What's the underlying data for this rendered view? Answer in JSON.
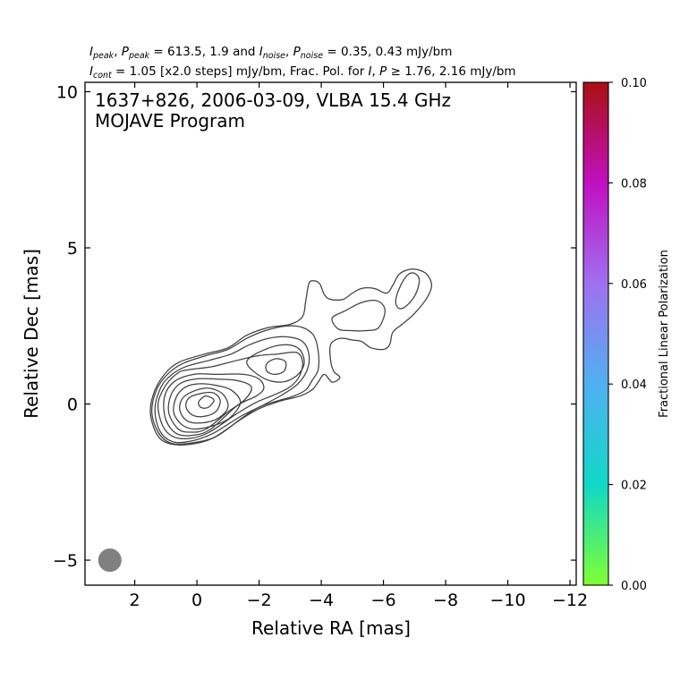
{
  "chart_data": {
    "type": "contour",
    "header_line1": "I_peak, P_peak = 613.5, 1.9 and I_noise, P_noise = 0.35, 0.43 mJy/bm",
    "header_line2": "I_cont = 1.05 [x2.0 steps] mJy/bm, Frac. Pol. for I, P ≥ 1.76, 2.16 mJy/bm",
    "header": {
      "i_peak": "613.5",
      "p_peak": "1.9",
      "i_noise": "0.35",
      "p_noise": "0.43",
      "i_cont": "1.05",
      "steps": "x2.0 steps",
      "i_thresh": "1.76",
      "p_thresh": "2.16"
    },
    "title_line1": "1637+826, 2006-03-09, VLBA 15.4 GHz",
    "title_line2": "MOJAVE Program",
    "xlabel": "Relative RA [mas]",
    "ylabel": "Relative Dec [mas]",
    "xlim": [
      3.6,
      -12.2
    ],
    "ylim": [
      -5.8,
      10.3
    ],
    "x_ticks": [
      2,
      0,
      -2,
      -4,
      -6,
      -8,
      -10,
      -12
    ],
    "x_tick_labels": [
      "2",
      "0",
      "−2",
      "−4",
      "−6",
      "−8",
      "−10",
      "−12"
    ],
    "y_ticks": [
      10,
      5,
      0,
      -5
    ],
    "y_tick_labels": [
      "10",
      "5",
      "0",
      "−5"
    ],
    "colorbar": {
      "label": "Fractional Linear Polarization",
      "min": 0.0,
      "max": 0.1,
      "ticks": [
        0.0,
        0.02,
        0.04,
        0.06,
        0.08,
        0.1
      ],
      "tick_labels": [
        "0.00",
        "0.02",
        "0.04",
        "0.06",
        "0.08",
        "0.10"
      ],
      "colors": [
        "#80ff30",
        "#10d8c8",
        "#50b0f0",
        "#a070f0",
        "#c010c0",
        "#aa1010"
      ]
    },
    "beam": {
      "x": 2.8,
      "y": -5.0,
      "major": 0.75,
      "minor": 0.75,
      "color": "#808080"
    },
    "contour_levels_mjy": [
      1.05,
      2.1,
      4.2,
      8.4,
      16.8,
      33.6,
      67.2,
      134.4,
      268.8,
      537.6
    ],
    "contour_color": "#404040",
    "contours": [
      [
        [
          -0.55,
          0.12
        ],
        [
          -0.42,
          0.22
        ],
        [
          -0.25,
          0.25
        ],
        [
          -0.05,
          0.05
        ],
        [
          -0.15,
          -0.12
        ],
        [
          -0.38,
          -0.1
        ]
      ],
      [
        [
          -0.2,
          0.35
        ],
        [
          -0.55,
          0.35
        ],
        [
          -0.75,
          0.1
        ],
        [
          -0.6,
          -0.25
        ],
        [
          -0.2,
          -0.4
        ],
        [
          0.15,
          -0.35
        ],
        [
          0.35,
          -0.1
        ],
        [
          0.25,
          0.2
        ]
      ],
      [
        [
          0.0,
          0.45
        ],
        [
          -0.45,
          0.5
        ],
        [
          -0.85,
          0.3
        ],
        [
          -1.0,
          -0.1
        ],
        [
          -0.7,
          -0.45
        ],
        [
          -0.2,
          -0.6
        ],
        [
          0.3,
          -0.55
        ],
        [
          0.55,
          -0.2
        ],
        [
          0.45,
          0.2
        ]
      ],
      [
        [
          -0.1,
          0.65
        ],
        [
          -0.6,
          0.6
        ],
        [
          -1.1,
          0.45
        ],
        [
          -1.4,
          0.05
        ],
        [
          -1.05,
          -0.45
        ],
        [
          -0.5,
          -0.7
        ],
        [
          0.1,
          -0.8
        ],
        [
          0.5,
          -0.65
        ],
        [
          0.75,
          -0.25
        ],
        [
          0.65,
          0.25
        ],
        [
          0.35,
          0.55
        ]
      ],
      [
        [
          0.05,
          0.8
        ],
        [
          -0.6,
          0.8
        ],
        [
          -1.3,
          0.75
        ],
        [
          -1.75,
          0.55
        ],
        [
          -1.55,
          0.15
        ],
        [
          -1.0,
          -0.25
        ],
        [
          -0.3,
          -0.8
        ],
        [
          0.2,
          -0.9
        ],
        [
          0.6,
          -0.8
        ],
        [
          0.9,
          -0.3
        ],
        [
          0.85,
          0.25
        ],
        [
          0.55,
          0.65
        ]
      ],
      [
        [
          0.1,
          0.95
        ],
        [
          -0.6,
          0.95
        ],
        [
          -1.5,
          0.95
        ],
        [
          -2.0,
          0.8
        ],
        [
          -2.15,
          0.5
        ],
        [
          -1.9,
          0.25
        ],
        [
          -1.3,
          -0.05
        ],
        [
          -0.45,
          -0.8
        ],
        [
          0.1,
          -1.0
        ],
        [
          0.65,
          -0.95
        ],
        [
          1.0,
          -0.5
        ],
        [
          1.05,
          0.2
        ],
        [
          0.75,
          0.7
        ]
      ],
      [
        [
          0.25,
          1.1
        ],
        [
          -0.5,
          1.2
        ],
        [
          -1.3,
          1.4
        ],
        [
          -2.0,
          1.55
        ],
        [
          -2.6,
          1.6
        ],
        [
          -3.2,
          1.65
        ],
        [
          -3.4,
          1.35
        ],
        [
          -3.3,
          0.9
        ],
        [
          -3.0,
          0.55
        ],
        [
          -2.5,
          0.3
        ],
        [
          -1.9,
          0.05
        ],
        [
          -1.3,
          -0.3
        ],
        [
          -0.4,
          -0.9
        ],
        [
          0.2,
          -1.1
        ],
        [
          0.75,
          -1.05
        ],
        [
          1.1,
          -0.7
        ],
        [
          1.25,
          0.0
        ],
        [
          1.0,
          0.6
        ],
        [
          0.6,
          1.0
        ]
      ],
      [
        [
          0.35,
          1.2
        ],
        [
          -0.4,
          1.4
        ],
        [
          -1.1,
          1.6
        ],
        [
          -1.7,
          1.9
        ],
        [
          -2.3,
          2.1
        ],
        [
          -2.9,
          2.15
        ],
        [
          -3.4,
          2.0
        ],
        [
          -3.6,
          1.6
        ],
        [
          -3.55,
          1.1
        ],
        [
          -3.25,
          0.65
        ],
        [
          -2.75,
          0.3
        ],
        [
          -2.1,
          -0.05
        ],
        [
          -1.4,
          -0.4
        ],
        [
          -0.5,
          -0.95
        ],
        [
          0.25,
          -1.2
        ],
        [
          0.8,
          -1.2
        ],
        [
          1.2,
          -0.85
        ],
        [
          1.35,
          -0.15
        ],
        [
          1.15,
          0.55
        ],
        [
          0.8,
          0.95
        ]
      ],
      [
        [
          0.45,
          1.3
        ],
        [
          -0.3,
          1.55
        ],
        [
          -1.0,
          1.75
        ],
        [
          -1.6,
          2.1
        ],
        [
          -2.2,
          2.35
        ],
        [
          -2.9,
          2.5
        ],
        [
          -3.4,
          2.45
        ],
        [
          -3.75,
          2.2
        ],
        [
          -3.9,
          1.7
        ],
        [
          -3.9,
          1.1
        ],
        [
          -3.7,
          0.75
        ],
        [
          -3.5,
          0.45
        ],
        [
          -3.1,
          0.25
        ],
        [
          -2.6,
          0.1
        ],
        [
          -2.0,
          -0.1
        ],
        [
          -1.45,
          -0.45
        ],
        [
          -0.6,
          -1.05
        ],
        [
          0.2,
          -1.25
        ],
        [
          0.85,
          -1.25
        ],
        [
          1.25,
          -0.9
        ],
        [
          1.45,
          -0.25
        ],
        [
          1.3,
          0.45
        ],
        [
          0.95,
          0.95
        ]
      ],
      [
        [
          0.55,
          1.35
        ],
        [
          -0.25,
          1.6
        ],
        [
          -1.0,
          1.8
        ],
        [
          -1.6,
          2.2
        ],
        [
          -2.3,
          2.45
        ],
        [
          -3.0,
          2.55
        ],
        [
          -3.4,
          2.8
        ],
        [
          -3.5,
          3.3
        ],
        [
          -3.6,
          3.85
        ],
        [
          -3.75,
          3.95
        ],
        [
          -3.95,
          3.85
        ],
        [
          -4.1,
          3.5
        ],
        [
          -4.3,
          3.35
        ],
        [
          -4.7,
          3.35
        ],
        [
          -5.0,
          3.55
        ],
        [
          -5.3,
          3.7
        ],
        [
          -5.7,
          3.7
        ],
        [
          -6.1,
          3.55
        ],
        [
          -6.3,
          3.8
        ],
        [
          -6.5,
          4.15
        ],
        [
          -6.8,
          4.3
        ],
        [
          -7.1,
          4.3
        ],
        [
          -7.4,
          4.15
        ],
        [
          -7.55,
          3.8
        ],
        [
          -7.4,
          3.4
        ],
        [
          -7.0,
          2.9
        ],
        [
          -6.6,
          2.55
        ],
        [
          -6.3,
          2.3
        ],
        [
          -6.2,
          1.9
        ],
        [
          -6.0,
          1.75
        ],
        [
          -5.6,
          1.8
        ],
        [
          -5.3,
          2.0
        ],
        [
          -5.0,
          2.05
        ],
        [
          -4.6,
          2.1
        ],
        [
          -4.3,
          1.9
        ],
        [
          -4.3,
          1.4
        ],
        [
          -4.4,
          1.05
        ],
        [
          -4.6,
          0.85
        ],
        [
          -4.35,
          0.7
        ],
        [
          -4.1,
          0.95
        ],
        [
          -3.9,
          0.7
        ],
        [
          -3.7,
          0.45
        ],
        [
          -3.3,
          0.25
        ],
        [
          -2.7,
          0.1
        ],
        [
          -2.0,
          -0.15
        ],
        [
          -1.4,
          -0.5
        ],
        [
          -0.5,
          -1.1
        ],
        [
          0.3,
          -1.3
        ],
        [
          0.95,
          -1.25
        ],
        [
          1.3,
          -0.95
        ],
        [
          1.5,
          -0.25
        ],
        [
          1.35,
          0.45
        ],
        [
          1.0,
          1.0
        ]
      ],
      [
        [
          -6.45,
          3.55
        ],
        [
          -6.7,
          4.05
        ],
        [
          -6.95,
          4.2
        ],
        [
          -7.15,
          4.0
        ],
        [
          -7.05,
          3.55
        ],
        [
          -6.8,
          3.2
        ],
        [
          -6.55,
          3.05
        ],
        [
          -6.4,
          3.2
        ]
      ],
      [
        [
          -4.35,
          2.75
        ],
        [
          -4.8,
          3.0
        ],
        [
          -5.3,
          3.25
        ],
        [
          -5.8,
          3.3
        ],
        [
          -6.05,
          3.0
        ],
        [
          -5.85,
          2.45
        ],
        [
          -5.45,
          2.35
        ],
        [
          -4.95,
          2.35
        ],
        [
          -4.55,
          2.4
        ]
      ],
      [
        [
          -2.25,
          1.3
        ],
        [
          -2.55,
          1.45
        ],
        [
          -2.85,
          1.35
        ],
        [
          -2.8,
          1.05
        ],
        [
          -2.5,
          0.95
        ],
        [
          -2.25,
          1.05
        ]
      ],
      [
        [
          -1.6,
          1.35
        ],
        [
          -2.2,
          1.75
        ],
        [
          -2.85,
          1.9
        ],
        [
          -3.3,
          1.75
        ],
        [
          -3.45,
          1.3
        ],
        [
          -3.2,
          0.9
        ],
        [
          -2.7,
          0.7
        ],
        [
          -2.1,
          0.85
        ]
      ]
    ]
  }
}
